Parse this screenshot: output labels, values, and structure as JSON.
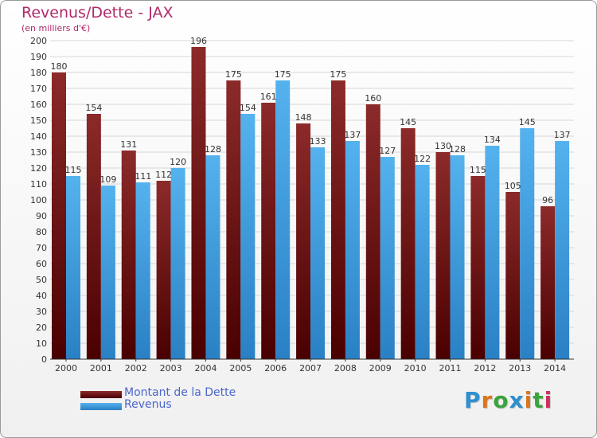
{
  "title": "Revenus/Dette - JAX",
  "subtitle": "(en milliers d'€)",
  "colors": {
    "dette": "#7a1a1a",
    "revenus": "#3e9ee0",
    "title": "#b0296a",
    "legend_text": "#4a66cc"
  },
  "logo": {
    "letters": [
      "P",
      "r",
      "o",
      "x",
      "i",
      "t",
      "i"
    ],
    "colors": [
      "#2f8fcf",
      "#d9761e",
      "#3ca33c",
      "#2f8fcf",
      "#d9761e",
      "#3ca33c",
      "#cf2f5f"
    ]
  },
  "chart_data": {
    "type": "bar",
    "title": "Revenus/Dette - JAX",
    "subtitle": "(en milliers d'€)",
    "categories": [
      "2000",
      "2001",
      "2002",
      "2003",
      "2004",
      "2005",
      "2006",
      "2007",
      "2008",
      "2009",
      "2010",
      "2011",
      "2012",
      "2013",
      "2014"
    ],
    "series": [
      {
        "name": "Montant de la Dette",
        "values": [
          180,
          154,
          131,
          112,
          196,
          175,
          161,
          148,
          175,
          160,
          145,
          130,
          115,
          105,
          96
        ]
      },
      {
        "name": "Revenus",
        "values": [
          115,
          109,
          111,
          120,
          128,
          154,
          175,
          133,
          137,
          127,
          122,
          128,
          134,
          145,
          137
        ]
      }
    ],
    "ylim": [
      0,
      200
    ],
    "ytick_step": 10,
    "grid": true,
    "legend": "bottom-left"
  }
}
